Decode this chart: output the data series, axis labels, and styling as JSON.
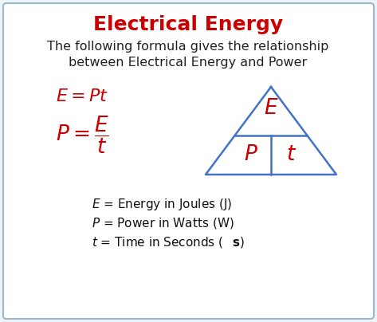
{
  "title": "Electrical Energy",
  "title_color": "#CC0000",
  "title_fontsize": 18,
  "subtitle_line1": "The following formula gives the relationship",
  "subtitle_line2": "between Electrical Energy and Power",
  "subtitle_color": "#222222",
  "subtitle_fontsize": 11.5,
  "formula1": "$E = Pt$",
  "formula_color": "#CC0000",
  "formula1_fontsize": 16,
  "formula2_fontsize": 16,
  "triangle_color": "#4472C4",
  "triangle_linewidth": 1.8,
  "legend_fontsize": 11,
  "legend_color": "#111111",
  "bg_color": "#eef3f7",
  "box_color": "white",
  "border_color": "#9ab8cc"
}
